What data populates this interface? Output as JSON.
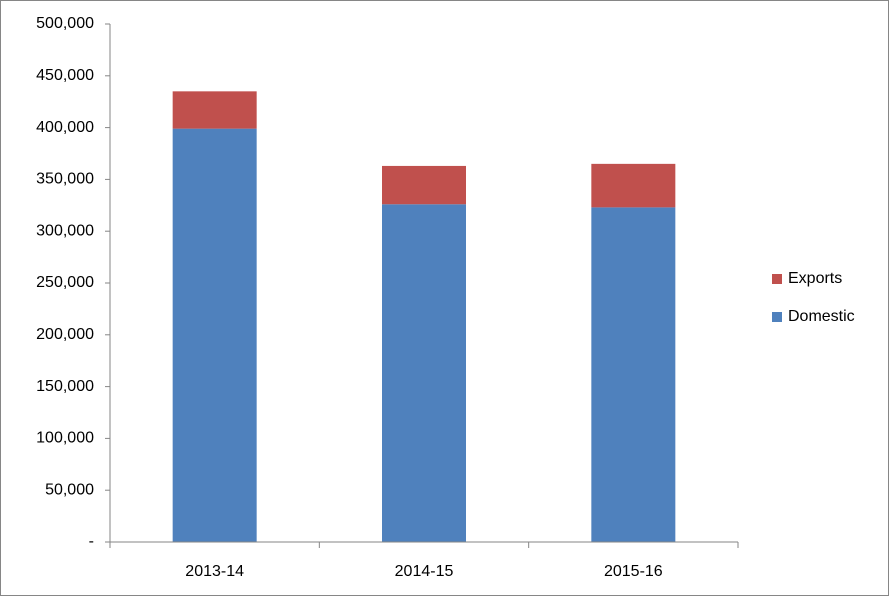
{
  "chart_data": {
    "type": "stacked-bar",
    "categories": [
      "2013-14",
      "2014-15",
      "2015-16"
    ],
    "series": [
      {
        "name": "Domestic",
        "color": "#4f81bd",
        "values": [
          399000,
          326000,
          323000
        ]
      },
      {
        "name": "Exports",
        "color": "#c0504d",
        "values": [
          36000,
          37000,
          42000
        ]
      }
    ],
    "ylim": [
      0,
      500000
    ],
    "yticks": [
      {
        "value": 0,
        "label": "-"
      },
      {
        "value": 50000,
        "label": "50,000"
      },
      {
        "value": 100000,
        "label": "100,000"
      },
      {
        "value": 150000,
        "label": "150,000"
      },
      {
        "value": 200000,
        "label": "200,000"
      },
      {
        "value": 250000,
        "label": "250,000"
      },
      {
        "value": 300000,
        "label": "300,000"
      },
      {
        "value": 350000,
        "label": "350,000"
      },
      {
        "value": 400000,
        "label": "400,000"
      },
      {
        "value": 450000,
        "label": "450,000"
      },
      {
        "value": 500000,
        "label": "500,000"
      }
    ],
    "grid": false,
    "legend": "right"
  }
}
